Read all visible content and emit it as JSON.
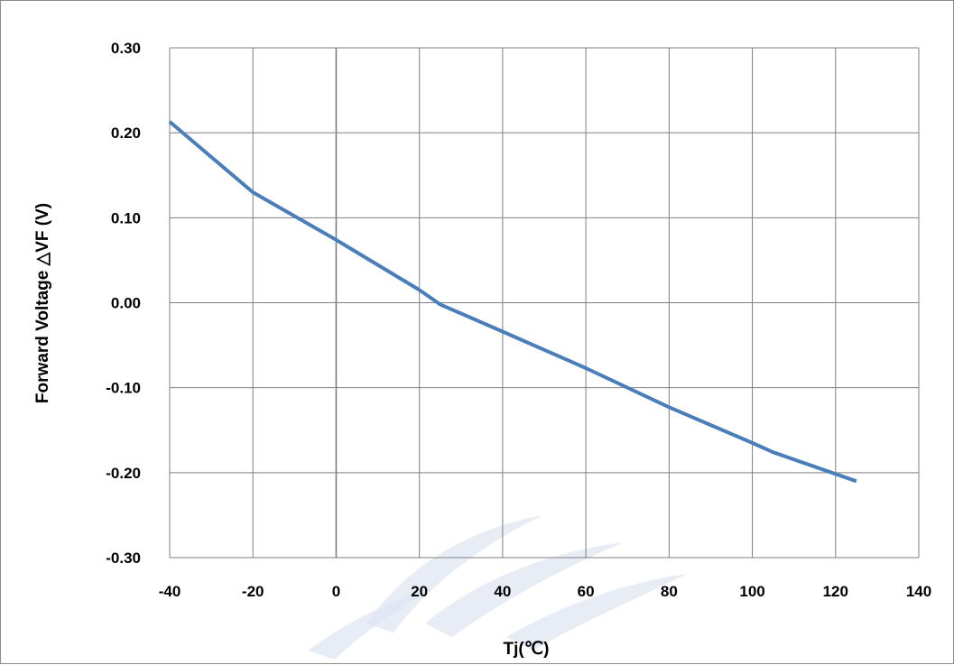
{
  "colors": {
    "series": "#4a7ebb",
    "grid": "#7f7f7f",
    "watermark": "#dfe6f1"
  },
  "chart_data": {
    "type": "line",
    "title": "",
    "xlabel": "Tj(℃)",
    "ylabel": "Forward Voltage △VF (V)",
    "xlim": [
      -40,
      140
    ],
    "ylim": [
      -0.3,
      0.3
    ],
    "x_ticks": [
      "-40",
      "-20",
      "0",
      "20",
      "40",
      "60",
      "80",
      "100",
      "120",
      "140"
    ],
    "y_ticks": [
      "0.30",
      "0.20",
      "0.10",
      "0.00",
      "-0.10",
      "-0.20",
      "-0.30"
    ],
    "grid": true,
    "legend": "none",
    "series": [
      {
        "x": [
          -40,
          -20,
          0,
          20,
          25,
          40,
          60,
          80,
          100,
          105,
          125
        ],
        "y": [
          0.213,
          0.13,
          0.074,
          0.015,
          -0.002,
          -0.034,
          -0.077,
          -0.123,
          -0.165,
          -0.176,
          -0.21
        ]
      }
    ]
  }
}
